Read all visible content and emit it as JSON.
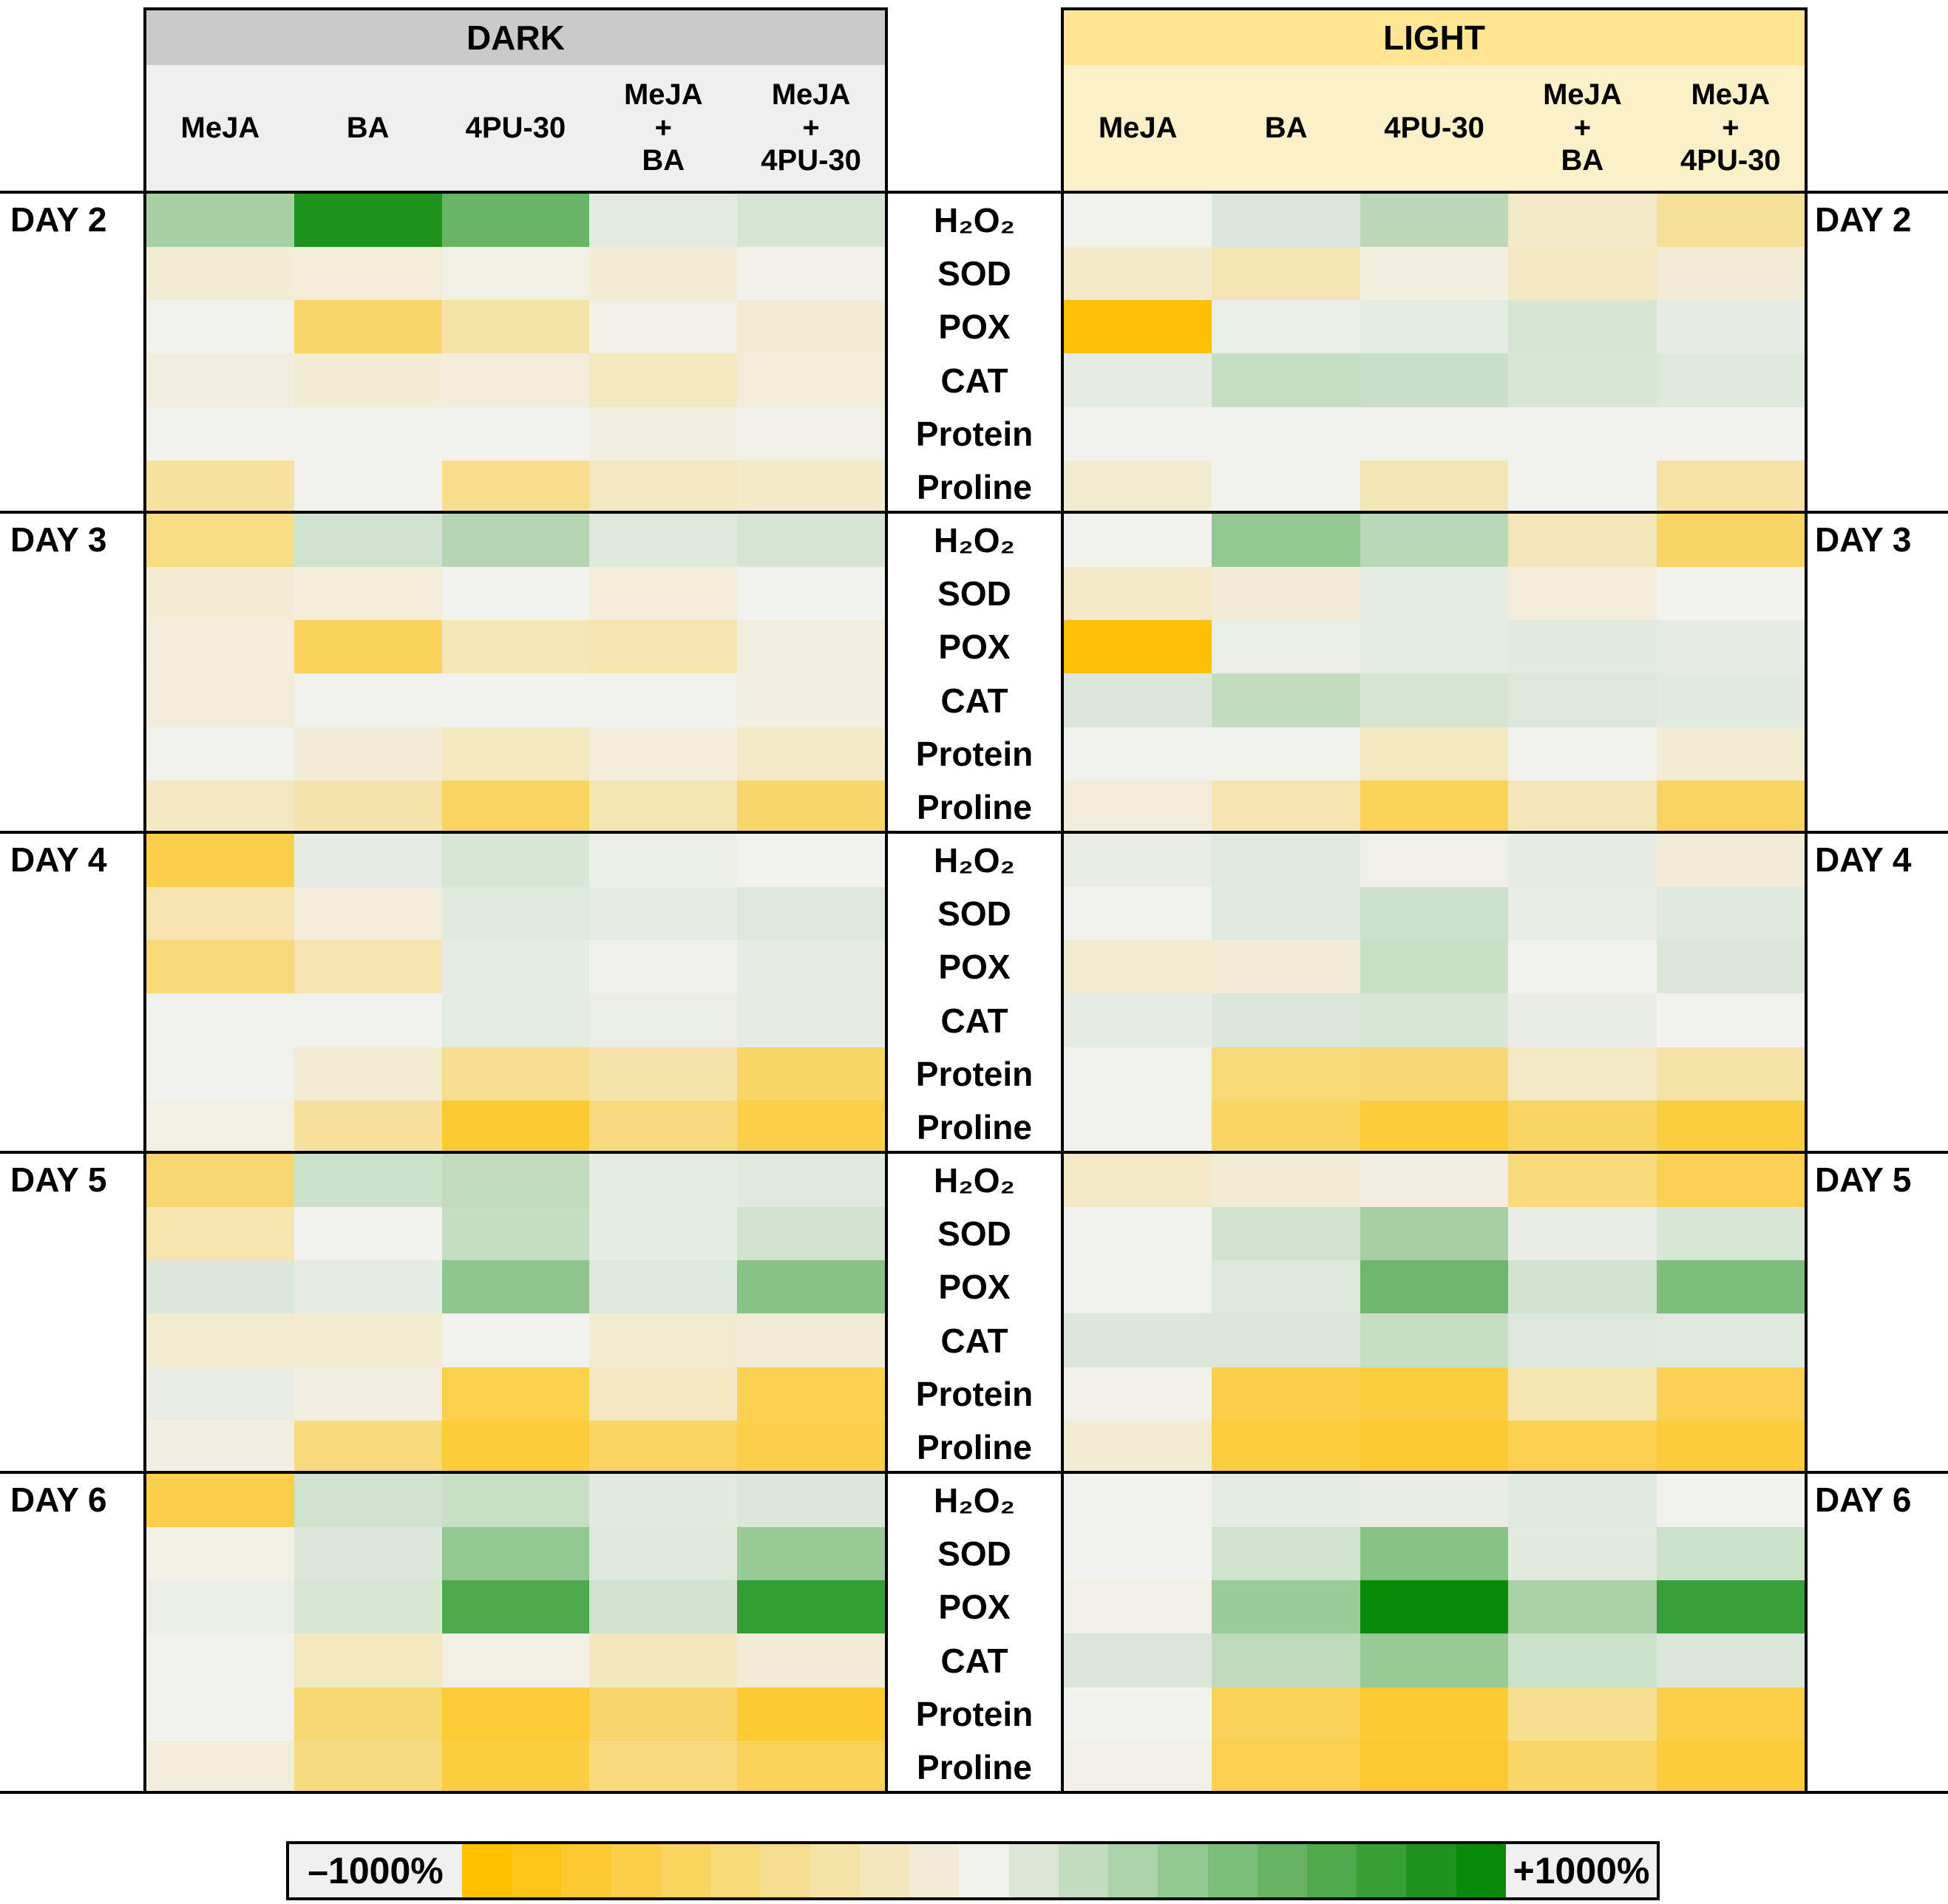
{
  "panels": {
    "dark": {
      "title": "DARK"
    },
    "light": {
      "title": "LIGHT"
    }
  },
  "days": [
    "DAY 2",
    "DAY 3",
    "DAY 4",
    "DAY 5",
    "DAY 6"
  ],
  "parameters": [
    "H₂O₂",
    "SOD",
    "POX",
    "CAT",
    "Protein",
    "Proline"
  ],
  "treatments_lines": [
    [
      "MeJA"
    ],
    [
      "BA"
    ],
    [
      "4PU-30"
    ],
    [
      "MeJA",
      "+",
      "BA"
    ],
    [
      "MeJA",
      "+",
      "4PU-30"
    ]
  ],
  "legend": {
    "min_label": "–1000%",
    "max_label": "+1000%"
  },
  "colors": {
    "scale_negative": "#FFC000",
    "scale_midpoint": "#F1F1EE",
    "scale_positive": "#078A07",
    "dark_title_bg": "#CACACA",
    "dark_header_bg": "#F0EFEF",
    "light_title_bg": "#FFE593",
    "light_header_bg": "#FCF0C6",
    "legend_label_bg": "#F0F0F0",
    "border": "#000000"
  },
  "chart_data": {
    "type": "heatmap",
    "unit": "%",
    "scale": {
      "min": -1000,
      "max": 1000,
      "min_label": "–1000%",
      "max_label": "+1000%",
      "legend_steps": 21
    },
    "conditions": [
      "DARK",
      "LIGHT"
    ],
    "days": [
      "DAY 2",
      "DAY 3",
      "DAY 4",
      "DAY 5",
      "DAY 6"
    ],
    "parameters": [
      "H2O2",
      "SOD",
      "POX",
      "CAT",
      "Protein",
      "Proline"
    ],
    "treatments": [
      "MeJA",
      "BA",
      "4PU-30",
      "MeJA + BA",
      "MeJA + 4PU-30"
    ],
    "values_percent_estimated": {
      "DARK": [
        [
          [
            320,
            900,
            580,
            60,
            120
          ],
          [
            -110,
            -90,
            -40,
            -115,
            -20
          ],
          [
            0,
            -560,
            -300,
            -25,
            -120
          ],
          [
            -65,
            -105,
            -80,
            -190,
            -90
          ],
          [
            0,
            0,
            0,
            -55,
            -30
          ],
          [
            -330,
            0,
            -410,
            -185,
            -150
          ]
        ],
        [
          [
            -440,
            140,
            260,
            80,
            115
          ],
          [
            -115,
            -90,
            0,
            -90,
            0
          ],
          [
            -75,
            -610,
            -230,
            -265,
            -65
          ],
          [
            -80,
            0,
            0,
            0,
            -55
          ],
          [
            0,
            -95,
            -190,
            -75,
            -170
          ],
          [
            -185,
            -280,
            -590,
            -255,
            -560
          ]
        ],
        [
          [
            -690,
            45,
            110,
            30,
            0
          ],
          [
            -260,
            -85,
            75,
            45,
            85
          ],
          [
            -490,
            -265,
            50,
            10,
            45
          ],
          [
            0,
            0,
            55,
            30,
            45
          ],
          [
            0,
            -120,
            -395,
            -290,
            -570
          ],
          [
            -45,
            -350,
            -780,
            -460,
            -700
          ]
        ],
        [
          [
            -530,
            160,
            210,
            55,
            75
          ],
          [
            -270,
            0,
            190,
            50,
            135
          ],
          [
            95,
            45,
            420,
            90,
            450
          ],
          [
            -125,
            -130,
            0,
            -125,
            -100
          ],
          [
            35,
            -55,
            -675,
            -180,
            -660
          ],
          [
            -55,
            -475,
            -760,
            -595,
            -690
          ]
        ],
        [
          [
            -690,
            145,
            175,
            65,
            95
          ],
          [
            -40,
            95,
            400,
            90,
            380
          ],
          [
            30,
            105,
            700,
            140,
            810
          ],
          [
            0,
            -190,
            -40,
            -205,
            -100
          ],
          [
            0,
            -515,
            -775,
            -550,
            -795
          ],
          [
            -85,
            -455,
            -730,
            -470,
            -635
          ]
        ]
      ],
      "LIGHT": [
        [
          [
            0,
            95,
            230,
            -160,
            -370
          ],
          [
            -150,
            -250,
            -60,
            -185,
            -95
          ],
          [
            -980,
            30,
            55,
            120,
            45
          ],
          [
            45,
            185,
            170,
            105,
            80
          ],
          [
            0,
            0,
            0,
            0,
            0
          ],
          [
            -130,
            0,
            -240,
            0,
            -310
          ]
        ],
        [
          [
            0,
            400,
            240,
            -225,
            -570
          ],
          [
            -160,
            -100,
            55,
            -80,
            0
          ],
          [
            -980,
            30,
            50,
            70,
            45
          ],
          [
            95,
            200,
            120,
            90,
            65
          ],
          [
            0,
            0,
            -190,
            0,
            -105
          ],
          [
            -80,
            -260,
            -640,
            -220,
            -590
          ]
        ],
        [
          [
            35,
            75,
            -25,
            45,
            -100
          ],
          [
            0,
            70,
            160,
            40,
            80
          ],
          [
            -125,
            -100,
            175,
            0,
            95
          ],
          [
            45,
            95,
            105,
            35,
            0
          ],
          [
            0,
            -500,
            -510,
            -170,
            -300
          ],
          [
            0,
            -590,
            -760,
            -575,
            -730
          ]
        ],
        [
          [
            -170,
            -110,
            -55,
            -475,
            -650
          ],
          [
            0,
            140,
            320,
            35,
            110
          ],
          [
            0,
            90,
            560,
            140,
            500
          ],
          [
            95,
            95,
            185,
            90,
            75
          ],
          [
            -20,
            -685,
            -725,
            -255,
            -645
          ],
          [
            -105,
            -735,
            -800,
            -665,
            -750
          ]
        ],
        [
          [
            0,
            55,
            35,
            75,
            0
          ],
          [
            0,
            140,
            450,
            65,
            160
          ],
          [
            -30,
            370,
            995,
            310,
            790
          ],
          [
            95,
            220,
            380,
            160,
            95
          ],
          [
            0,
            -625,
            -795,
            -390,
            -700
          ],
          [
            -35,
            -665,
            -800,
            -560,
            -755
          ]
        ]
      ]
    }
  }
}
